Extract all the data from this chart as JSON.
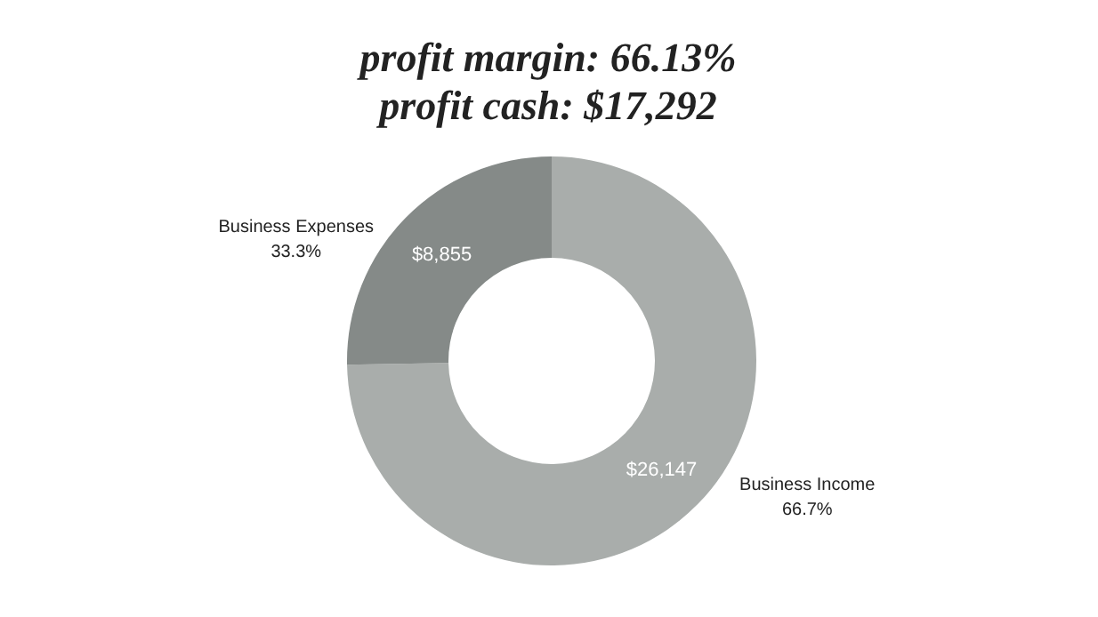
{
  "chart_data": {
    "type": "donut",
    "title": "profit margin: 66.13%",
    "subtitle": "profit cash: $17,292",
    "categories": [
      "Business Income",
      "Business Expenses"
    ],
    "values": [
      26147,
      8855
    ],
    "colors": [
      "#a9adab",
      "#858a88"
    ],
    "value_labels": [
      "$26,147",
      "$8,855"
    ],
    "annotations": [
      "66.7%",
      "33.3%"
    ],
    "legend": false
  }
}
